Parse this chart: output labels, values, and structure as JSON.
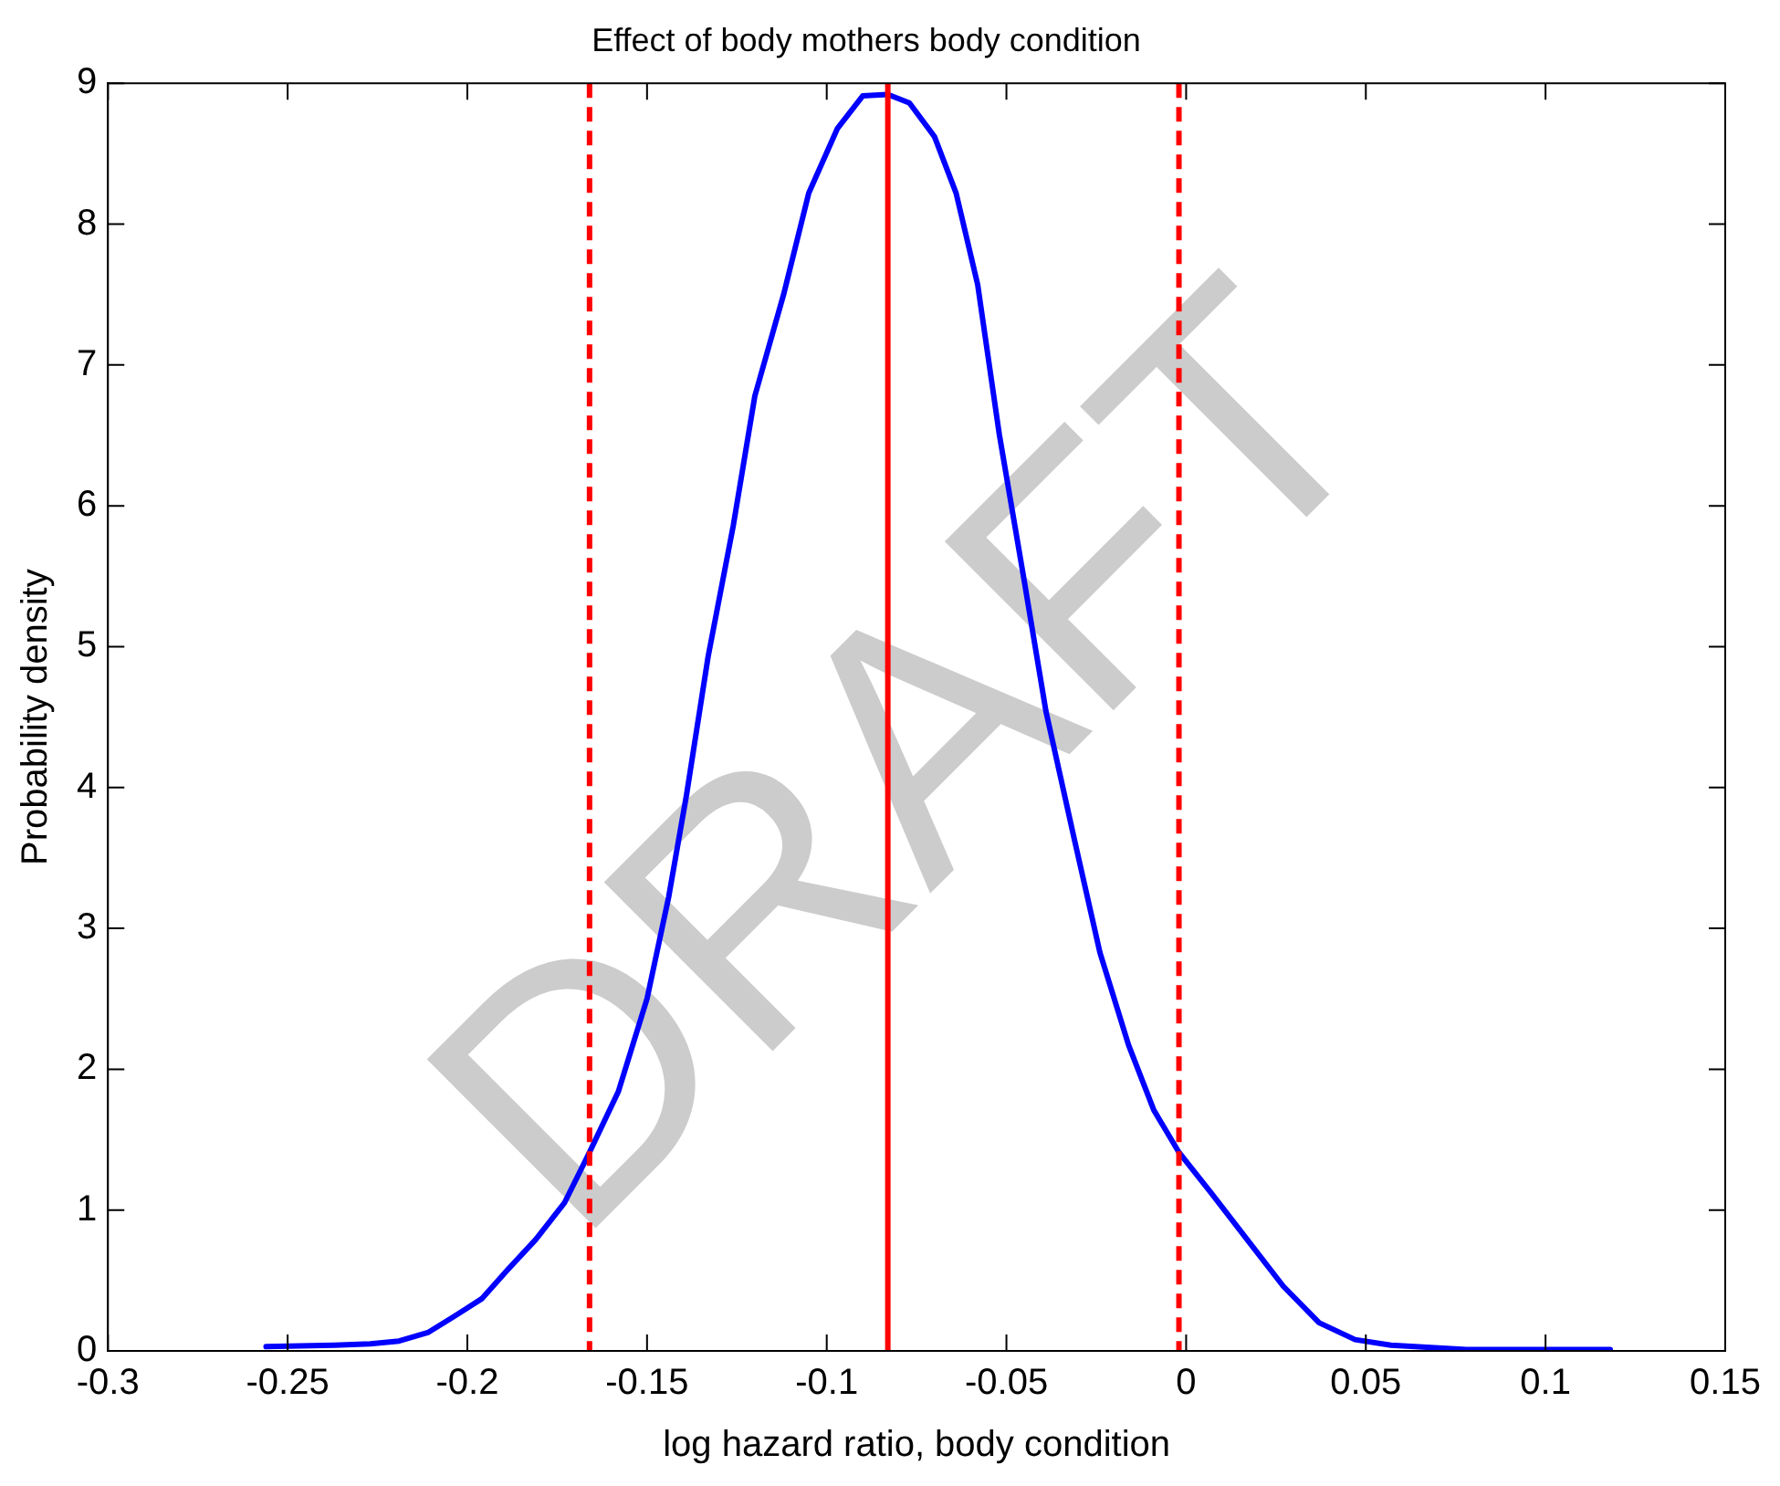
{
  "chart_data": {
    "type": "line",
    "title": "Effect of body mothers body condition",
    "xlabel": "log hazard ratio, body condition",
    "ylabel": "Probability density",
    "annotations": [
      "DRAFT"
    ],
    "series": [
      {
        "color": "#0000ff",
        "x": [
          -0.256,
          -0.237,
          -0.227,
          -0.219,
          -0.211,
          -0.204,
          -0.196,
          -0.189,
          -0.181,
          -0.173,
          -0.166,
          -0.158,
          -0.15,
          -0.144,
          -0.139,
          -0.133,
          -0.126,
          -0.12,
          -0.112,
          -0.105,
          -0.097,
          -0.09,
          -0.083,
          -0.077,
          -0.07,
          -0.064,
          -0.058,
          -0.052,
          -0.045,
          -0.039,
          -0.031,
          -0.024,
          -0.016,
          -0.009,
          -0.002,
          0.007,
          0.017,
          0.027,
          0.037,
          0.047,
          0.057,
          0.078,
          0.118
        ],
        "values": [
          0.03,
          0.04,
          0.05,
          0.07,
          0.13,
          0.24,
          0.37,
          0.57,
          0.79,
          1.05,
          1.41,
          1.84,
          2.5,
          3.22,
          3.95,
          4.93,
          5.86,
          6.78,
          7.5,
          8.22,
          8.68,
          8.91,
          8.92,
          8.86,
          8.62,
          8.22,
          7.57,
          6.51,
          5.46,
          4.54,
          3.62,
          2.83,
          2.17,
          1.71,
          1.41,
          1.12,
          0.79,
          0.46,
          0.2,
          0.08,
          0.04,
          0.01,
          0.01
        ]
      }
    ],
    "ref_lines": [
      {
        "axis": "x",
        "value": -0.166,
        "color": "#ff0000",
        "line_style": "dashed"
      },
      {
        "axis": "x",
        "value": -0.083,
        "color": "#ff0000",
        "line_style": "solid"
      },
      {
        "axis": "x",
        "value": -0.002,
        "color": "#ff0000",
        "line_style": "dashed"
      }
    ],
    "xlim": [
      -0.3,
      0.15
    ],
    "xticks": [
      -0.3,
      -0.25,
      -0.2,
      -0.15,
      -0.1,
      -0.05,
      0,
      0.05,
      0.1,
      0.15
    ],
    "ylim": [
      0,
      9
    ],
    "yticks": [
      0,
      1,
      2,
      3,
      4,
      5,
      6,
      7,
      8,
      9
    ],
    "grid": false,
    "legend": false,
    "marker": "none",
    "line_style": "solid"
  }
}
